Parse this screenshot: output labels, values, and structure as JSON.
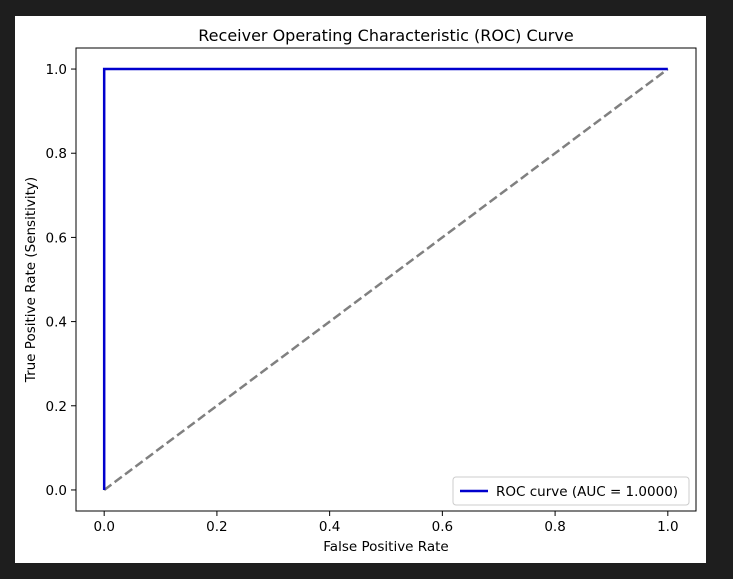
{
  "chart_data": {
    "type": "line",
    "title": "Receiver Operating Characteristic (ROC) Curve",
    "xlabel": "False Positive Rate",
    "ylabel": "True Positive Rate (Sensitivity)",
    "xlim": [
      -0.05,
      1.05
    ],
    "ylim": [
      -0.05,
      1.05
    ],
    "xticks": [
      0.0,
      0.2,
      0.4,
      0.6,
      0.8,
      1.0
    ],
    "yticks": [
      0.0,
      0.2,
      0.4,
      0.6,
      0.8,
      1.0
    ],
    "xtick_labels": [
      "0.0",
      "0.2",
      "0.4",
      "0.6",
      "0.8",
      "1.0"
    ],
    "ytick_labels": [
      "0.0",
      "0.2",
      "0.4",
      "0.6",
      "0.8",
      "1.0"
    ],
    "grid": false,
    "legend_position": "lower-right",
    "series": [
      {
        "name": "ROC curve (AUC = 1.0000)",
        "color": "#0000cd",
        "style": "solid",
        "x": [
          0.0,
          0.0,
          1.0
        ],
        "y": [
          0.0,
          1.0,
          1.0
        ]
      },
      {
        "color": "#808080",
        "style": "dashed",
        "x": [
          0.0,
          1.0
        ],
        "y": [
          0.0,
          1.0
        ]
      }
    ]
  }
}
